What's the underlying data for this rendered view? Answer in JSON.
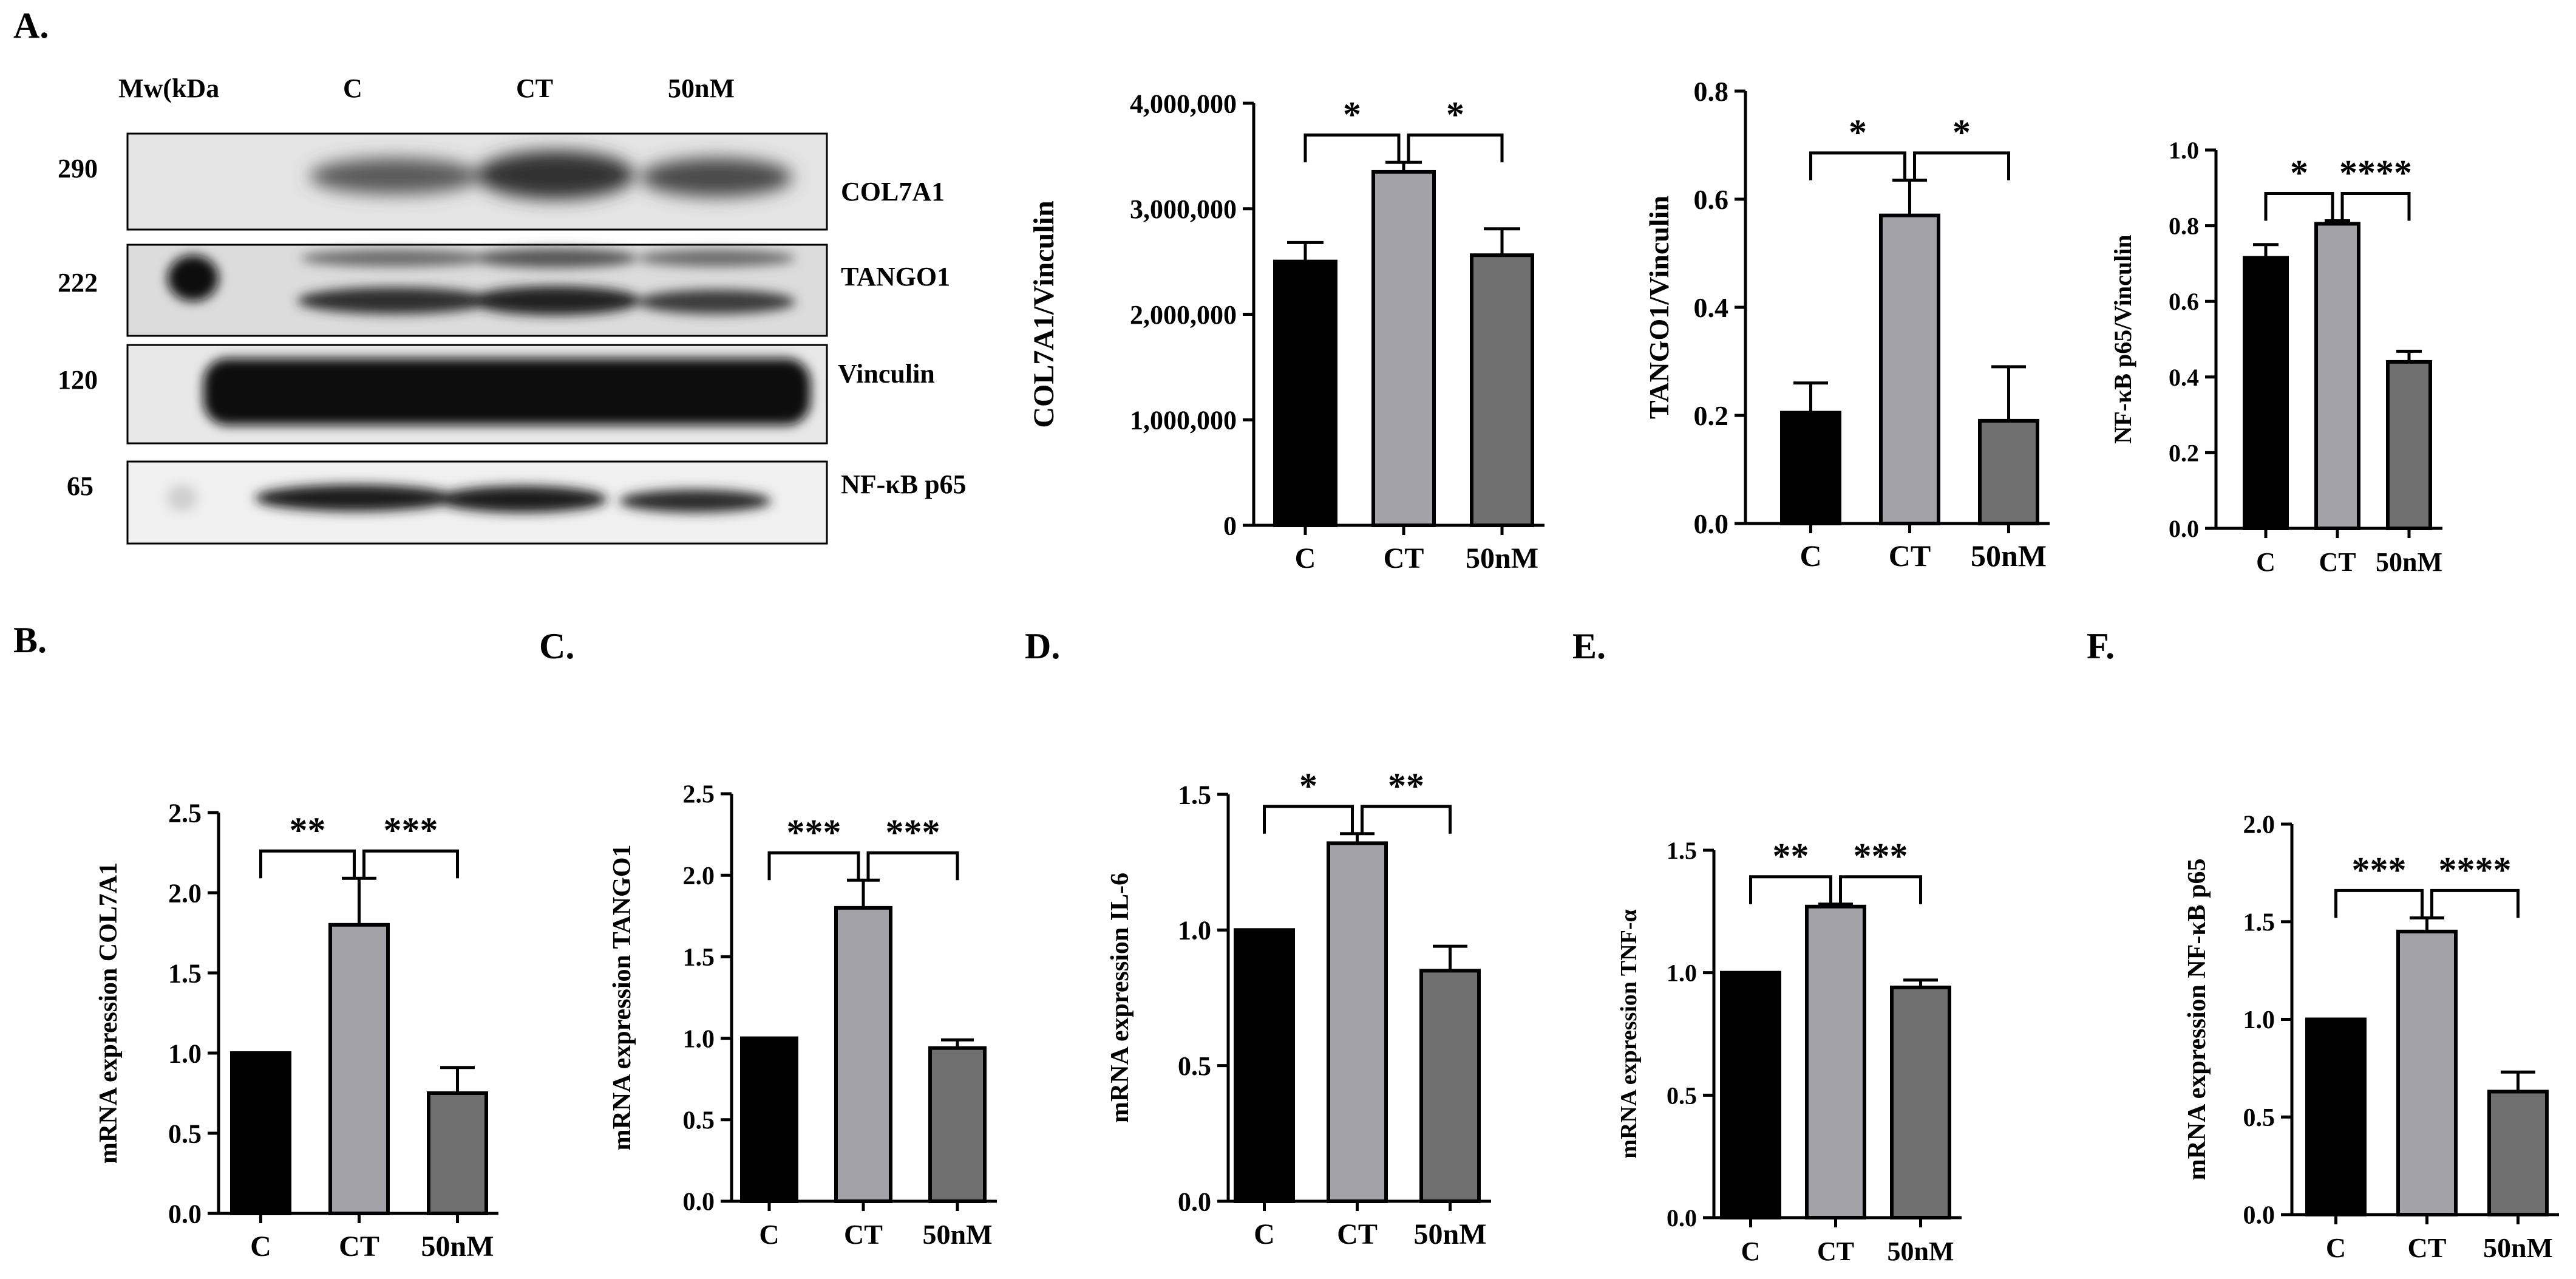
{
  "panel_letters": {
    "a": "A.",
    "b": "B.",
    "c": "C.",
    "d": "D.",
    "e": "E.",
    "f": "F."
  },
  "blot": {
    "header": {
      "mw": "Mw(kDa",
      "lanes": [
        "C",
        "CT",
        "50nM"
      ]
    },
    "rows": [
      {
        "mw": "290",
        "protein": "COL7A1"
      },
      {
        "mw": "222",
        "protein": "TANGO1"
      },
      {
        "mw": "120",
        "protein": "Vinculin"
      },
      {
        "mw": "65",
        "protein": "NF-κB p65"
      }
    ]
  },
  "chart_data": [
    {
      "id": "wb_col7a1",
      "type": "bar",
      "categories": [
        "C",
        "CT",
        "50nM"
      ],
      "values": [
        2500000,
        3350000,
        2560000
      ],
      "errors": [
        180000,
        90000,
        250000
      ],
      "ylabel": "COL7A1/Vinculin",
      "ylim": [
        0,
        4000000
      ],
      "ticks": [
        0,
        1000000,
        2000000,
        3000000,
        4000000
      ],
      "tick_labels": [
        "0",
        "1,000,000",
        "2,000,000",
        "3,000,000",
        "4,000,000"
      ],
      "colors": [
        "#000000",
        "#a2a2a8",
        "#707070"
      ],
      "comparisons": [
        {
          "from": 0,
          "to": 1,
          "label": "*"
        },
        {
          "from": 1,
          "to": 2,
          "label": "*"
        }
      ]
    },
    {
      "id": "wb_tango1",
      "type": "bar",
      "categories": [
        "C",
        "CT",
        "50nM"
      ],
      "values": [
        0.205,
        0.57,
        0.19
      ],
      "errors": [
        0.055,
        0.065,
        0.1
      ],
      "ylabel": "TANGO1/Vinculin",
      "ylim": [
        0,
        0.8
      ],
      "ticks": [
        0,
        0.2,
        0.4,
        0.6,
        0.8
      ],
      "tick_labels": [
        "0.0",
        "0.2",
        "0.4",
        "0.6",
        "0.8"
      ],
      "colors": [
        "#000000",
        "#a2a2a8",
        "#707070"
      ],
      "comparisons": [
        {
          "from": 0,
          "to": 1,
          "label": "*"
        },
        {
          "from": 1,
          "to": 2,
          "label": "*"
        }
      ]
    },
    {
      "id": "wb_nfkb",
      "type": "bar",
      "categories": [
        "C",
        "CT",
        "50nM"
      ],
      "values": [
        0.715,
        0.805,
        0.44
      ],
      "errors": [
        0.035,
        0.008,
        0.028
      ],
      "ylabel": "NF-κB p65/Vinculin",
      "ylim": [
        0,
        1.0
      ],
      "ticks": [
        0,
        0.2,
        0.4,
        0.6,
        0.8,
        1.0
      ],
      "tick_labels": [
        "0.0",
        "0.2",
        "0.4",
        "0.6",
        "0.8",
        "1.0"
      ],
      "colors": [
        "#000000",
        "#a2a2a8",
        "#707070"
      ],
      "comparisons": [
        {
          "from": 0,
          "to": 1,
          "label": "*"
        },
        {
          "from": 1,
          "to": 2,
          "label": "****"
        }
      ]
    },
    {
      "id": "b_col7a1",
      "type": "bar",
      "categories": [
        "C",
        "CT",
        "50nM"
      ],
      "values": [
        1.0,
        1.8,
        0.75
      ],
      "errors": [
        0,
        0.29,
        0.16
      ],
      "ylabel": "mRNA expression COL7A1",
      "ylim": [
        0,
        2.5
      ],
      "ticks": [
        0,
        0.5,
        1.0,
        1.5,
        2.0,
        2.5
      ],
      "tick_labels": [
        "0.0",
        "0.5",
        "1.0",
        "1.5",
        "2.0",
        "2.5"
      ],
      "colors": [
        "#000000",
        "#a2a2a8",
        "#707070"
      ],
      "comparisons": [
        {
          "from": 0,
          "to": 1,
          "label": "**"
        },
        {
          "from": 1,
          "to": 2,
          "label": "***"
        }
      ]
    },
    {
      "id": "c_tango1",
      "type": "bar",
      "categories": [
        "C",
        "CT",
        "50nM"
      ],
      "values": [
        1.0,
        1.8,
        0.94
      ],
      "errors": [
        0,
        0.17,
        0.05
      ],
      "ylabel": "mRNA expression TANGO1",
      "ylim": [
        0,
        2.5
      ],
      "ticks": [
        0,
        0.5,
        1.0,
        1.5,
        2.0,
        2.5
      ],
      "tick_labels": [
        "0.0",
        "0.5",
        "1.0",
        "1.5",
        "2.0",
        "2.5"
      ],
      "colors": [
        "#000000",
        "#a2a2a8",
        "#707070"
      ],
      "comparisons": [
        {
          "from": 0,
          "to": 1,
          "label": "***"
        },
        {
          "from": 1,
          "to": 2,
          "label": "***"
        }
      ]
    },
    {
      "id": "d_il6",
      "type": "bar",
      "categories": [
        "C",
        "CT",
        "50nM"
      ],
      "values": [
        1.0,
        1.32,
        0.85
      ],
      "errors": [
        0,
        0.035,
        0.09
      ],
      "ylabel": "mRNA expression IL-6",
      "ylim": [
        0,
        1.5
      ],
      "ticks": [
        0,
        0.5,
        1.0,
        1.5
      ],
      "tick_labels": [
        "0.0",
        "0.5",
        "1.0",
        "1.5"
      ],
      "colors": [
        "#000000",
        "#a2a2a8",
        "#707070"
      ],
      "comparisons": [
        {
          "from": 0,
          "to": 1,
          "label": "*"
        },
        {
          "from": 1,
          "to": 2,
          "label": "**"
        }
      ]
    },
    {
      "id": "e_tnfa",
      "type": "bar",
      "categories": [
        "C",
        "CT",
        "50nM"
      ],
      "values": [
        1.0,
        1.27,
        0.94
      ],
      "errors": [
        0,
        0.01,
        0.03
      ],
      "ylabel": "mRNA expression TNF-α",
      "ylim": [
        0,
        1.5
      ],
      "ticks": [
        0,
        0.5,
        1.0,
        1.5
      ],
      "tick_labels": [
        "0.0",
        "0.5",
        "1.0",
        "1.5"
      ],
      "colors": [
        "#000000",
        "#a2a2a8",
        "#707070"
      ],
      "comparisons": [
        {
          "from": 0,
          "to": 1,
          "label": "**"
        },
        {
          "from": 1,
          "to": 2,
          "label": "***"
        }
      ]
    },
    {
      "id": "f_nfkb",
      "type": "bar",
      "categories": [
        "C",
        "CT",
        "50nM"
      ],
      "values": [
        1.0,
        1.45,
        0.63
      ],
      "errors": [
        0,
        0.07,
        0.1
      ],
      "ylabel": "mRNA expression NF-κB p65",
      "ylim": [
        0,
        2.0
      ],
      "ticks": [
        0,
        0.5,
        1.0,
        1.5,
        2.0
      ],
      "tick_labels": [
        "0.0",
        "0.5",
        "1.0",
        "1.5",
        "2.0"
      ],
      "colors": [
        "#000000",
        "#a2a2a8",
        "#707070"
      ],
      "comparisons": [
        {
          "from": 0,
          "to": 1,
          "label": "***"
        },
        {
          "from": 1,
          "to": 2,
          "label": "****"
        }
      ]
    }
  ]
}
